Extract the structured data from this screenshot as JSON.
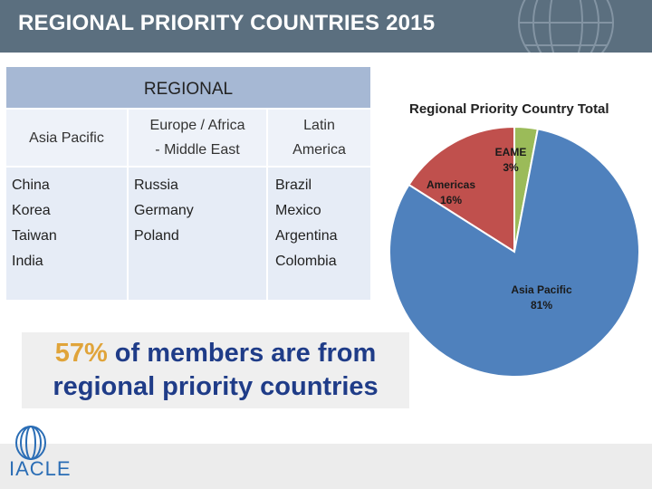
{
  "header": {
    "title": "REGIONAL PRIORITY COUNTRIES 2015"
  },
  "table": {
    "heading": "REGIONAL",
    "columns": [
      {
        "title_lines": [
          "Asia Pacific"
        ],
        "countries": [
          "China",
          "Korea",
          "Taiwan",
          "India"
        ]
      },
      {
        "title_lines": [
          "Europe / Africa",
          "- Middle East"
        ],
        "countries": [
          "Russia",
          "Germany",
          "Poland"
        ]
      },
      {
        "title_lines": [
          "Latin",
          "America"
        ],
        "countries": [
          "Brazil",
          "Mexico",
          "Argentina",
          "Colombia"
        ]
      }
    ]
  },
  "banner": {
    "highlight": "57%",
    "rest": " of members are from",
    "line2": "regional priority countries"
  },
  "chart_data": {
    "type": "pie",
    "title": "Regional Priority Country Total",
    "slices": [
      {
        "label": "Asia Pacific",
        "value": 81,
        "pct_label": "81%",
        "color": "#4f81bd"
      },
      {
        "label": "Americas",
        "value": 16,
        "pct_label": "16%",
        "color": "#c0504d"
      },
      {
        "label": "EAME",
        "value": 3,
        "pct_label": "3%",
        "color": "#9bbb59"
      }
    ]
  },
  "logo": {
    "text": "IACLE"
  }
}
